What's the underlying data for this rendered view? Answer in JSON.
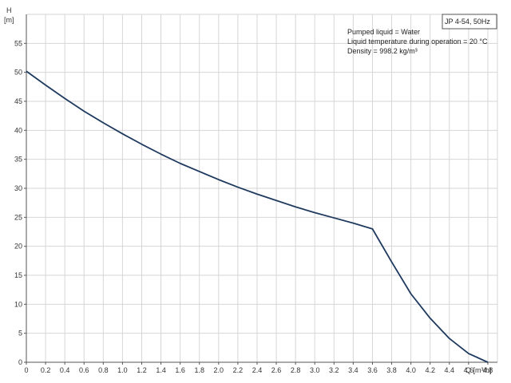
{
  "chart_data": {
    "type": "line",
    "title": "JP 4-54, 50Hz",
    "ylabel_symbol": "H",
    "ylabel_unit": "[m]",
    "xlabel": "Q [m³/h]",
    "xlim": [
      0,
      4.9
    ],
    "ylim": [
      0,
      60
    ],
    "x_ticks": [
      0,
      0.2,
      0.4,
      0.6,
      0.8,
      1.0,
      1.2,
      1.4,
      1.6,
      1.8,
      2.0,
      2.2,
      2.4,
      2.6,
      2.8,
      3.0,
      3.2,
      3.4,
      3.6,
      3.8,
      4.0,
      4.2,
      4.4,
      4.6,
      4.8
    ],
    "x_tick_labels": [
      "0",
      "0.2",
      "0.4",
      "0.6",
      "0.8",
      "1.0",
      "1.2",
      "1.4",
      "1.6",
      "1.8",
      "2.0",
      "2.2",
      "2.4",
      "2.6",
      "2.8",
      "3.0",
      "3.2",
      "3.4",
      "3.6",
      "3.8",
      "4.0",
      "4.2",
      "4.4",
      "4.6",
      "4.8"
    ],
    "y_ticks": [
      0,
      5,
      10,
      15,
      20,
      25,
      30,
      35,
      40,
      45,
      50,
      55
    ],
    "y_tick_labels": [
      "0",
      "5",
      "10",
      "15",
      "20",
      "25",
      "30",
      "35",
      "40",
      "45",
      "50",
      "55"
    ],
    "grid": true,
    "annotations": [
      "Pumped liquid = Water",
      "Liquid temperature during operation = 20 °C",
      "Density = 998.2 kg/m³"
    ],
    "series": [
      {
        "color": "#1f3a5f",
        "x": [
          0,
          0.2,
          0.4,
          0.6,
          0.8,
          1.0,
          1.2,
          1.4,
          1.6,
          1.8,
          2.0,
          2.2,
          2.4,
          2.6,
          2.8,
          3.0,
          3.2,
          3.4,
          3.6,
          3.8,
          4.0,
          4.2,
          4.4,
          4.6,
          4.8
        ],
        "y": [
          50.2,
          47.8,
          45.5,
          43.3,
          41.3,
          39.4,
          37.6,
          35.9,
          34.3,
          32.9,
          31.5,
          30.2,
          29.0,
          27.9,
          26.8,
          25.8,
          24.9,
          24.0,
          23.0,
          17.3,
          11.8,
          7.6,
          4.1,
          1.5,
          0
        ]
      }
    ]
  }
}
